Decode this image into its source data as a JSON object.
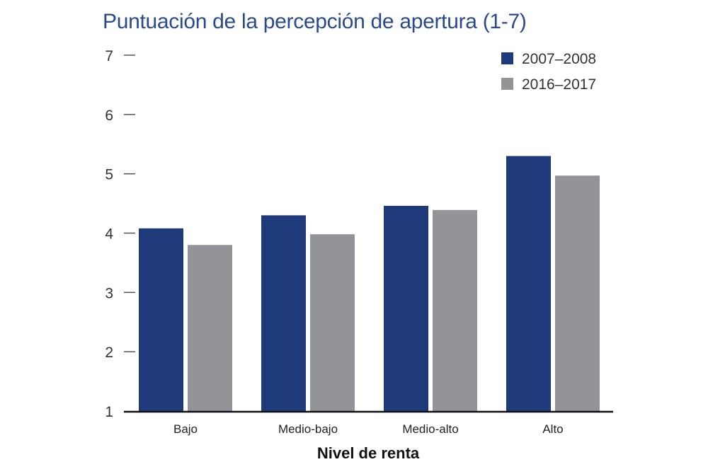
{
  "chart_data": {
    "type": "bar",
    "title": "Puntuación de la percepción de apertura (1-7)",
    "xlabel": "Nivel de renta",
    "ylabel": "",
    "ylim": [
      1,
      7
    ],
    "yticks": [
      1,
      2,
      3,
      4,
      5,
      6,
      7
    ],
    "categories": [
      "Bajo",
      "Medio-bajo",
      "Medio-alto",
      "Alto"
    ],
    "series": [
      {
        "name": "2007–2008",
        "color": "#1f3a7a",
        "values": [
          4.08,
          4.3,
          4.46,
          5.3
        ]
      },
      {
        "name": "2016–2017",
        "color": "#929497",
        "values": [
          3.8,
          3.98,
          4.39,
          4.97
        ]
      }
    ],
    "legend_position": "top-right",
    "grid": false
  }
}
